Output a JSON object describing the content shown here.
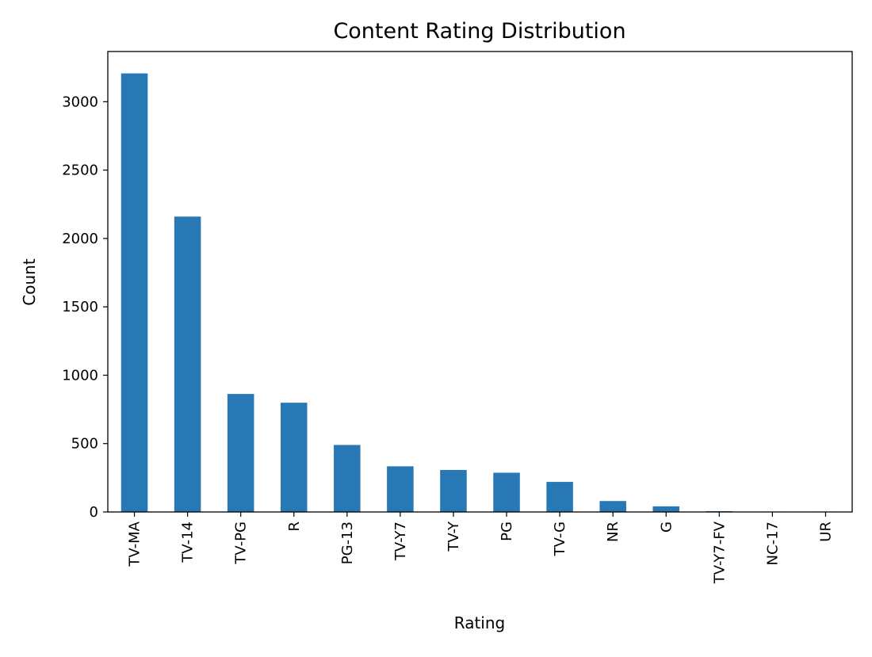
{
  "chart_data": {
    "type": "bar",
    "title": "Content Rating Distribution",
    "xlabel": "Rating",
    "ylabel": "Count",
    "categories": [
      "TV-MA",
      "TV-14",
      "TV-PG",
      "R",
      "PG-13",
      "TV-Y7",
      "TV-Y",
      "PG",
      "TV-G",
      "NR",
      "G",
      "TV-Y7-FV",
      "NC-17",
      "UR"
    ],
    "values": [
      3207,
      2160,
      863,
      799,
      490,
      334,
      307,
      287,
      220,
      80,
      41,
      6,
      3,
      3
    ],
    "yticks": [
      0,
      500,
      1000,
      1500,
      2000,
      2500,
      3000
    ],
    "ylim": [
      0,
      3367
    ],
    "bar_color": "#2878b5",
    "grid": false,
    "legend": "none"
  }
}
